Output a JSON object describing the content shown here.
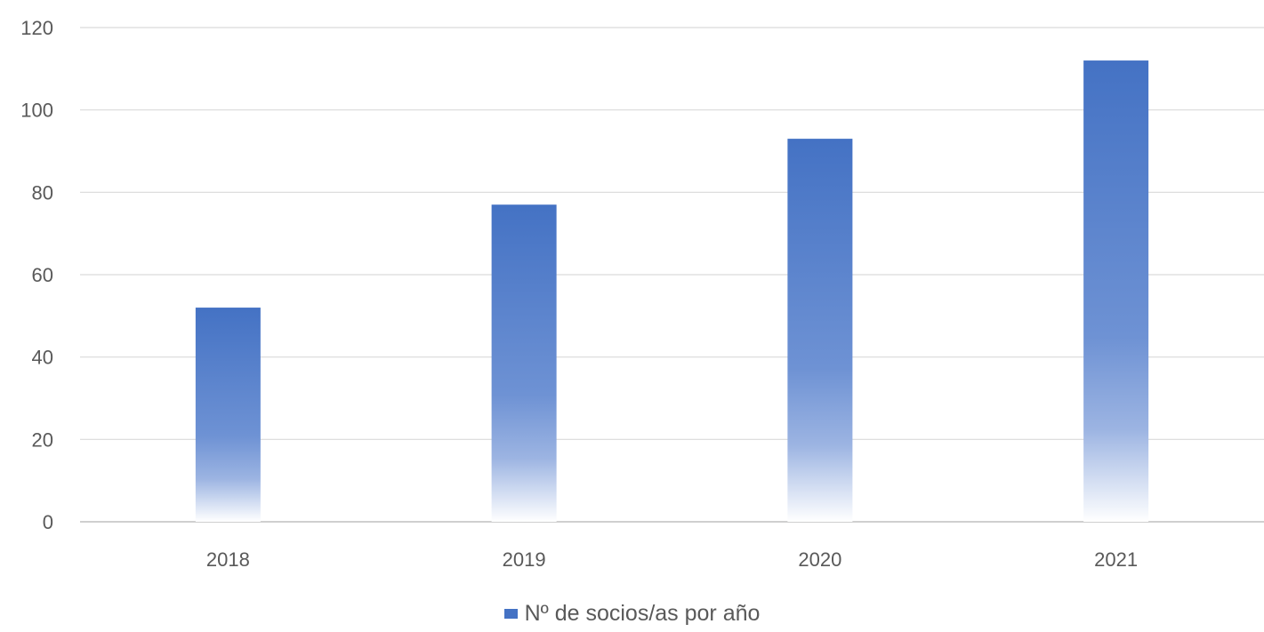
{
  "chart_data": {
    "type": "bar",
    "categories": [
      "2018",
      "2019",
      "2020",
      "2021"
    ],
    "series": [
      {
        "name": "Nº de socios/as por año",
        "values": [
          52,
          77,
          93,
          112
        ],
        "color": "#4472c4"
      }
    ],
    "title": "",
    "xlabel": "",
    "ylabel": "",
    "ylim": [
      0,
      120
    ],
    "yticks": [
      "0",
      "20",
      "40",
      "60",
      "80",
      "100",
      "120"
    ],
    "grid": true,
    "legend_position": "bottom"
  }
}
